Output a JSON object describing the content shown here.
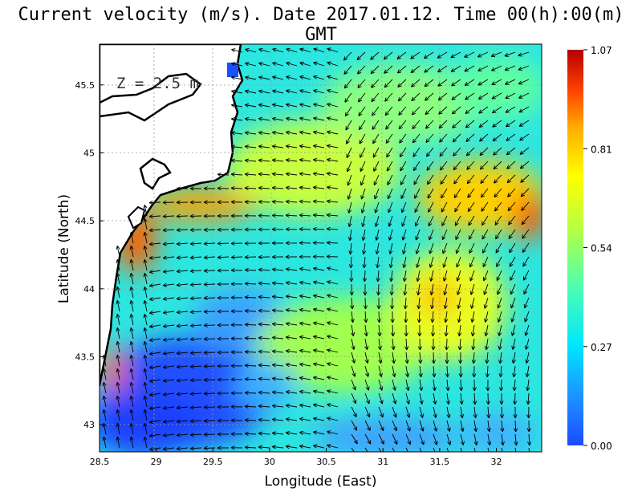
{
  "title": "Current velocity (m/s). Date 2017.01.12. Time 00(h):00(m) GMT",
  "depth_label": "Z = 2.5 m",
  "xlabel": "Longitude (East)",
  "ylabel": "Latitude (North)",
  "x_ticks": [
    {
      "label": "28.5",
      "value": 28.5
    },
    {
      "label": "29",
      "value": 29
    },
    {
      "label": "29.5",
      "value": 29.5
    },
    {
      "label": "30",
      "value": 30
    },
    {
      "label": "30.5",
      "value": 30.5
    },
    {
      "label": "31",
      "value": 31
    },
    {
      "label": "31.5",
      "value": 31.5
    },
    {
      "label": "32",
      "value": 32
    }
  ],
  "y_ticks": [
    {
      "label": "43",
      "value": 43
    },
    {
      "label": "43.5",
      "value": 43.5
    },
    {
      "label": "44",
      "value": 44
    },
    {
      "label": "44.5",
      "value": 44.5
    },
    {
      "label": "45",
      "value": 45
    },
    {
      "label": "45.5",
      "value": 45.5
    }
  ],
  "colorbar": {
    "ticks": [
      "1.07",
      "0.81",
      "0.54",
      "0.27",
      "0.00"
    ],
    "min": 0.0,
    "max": 1.07,
    "colors": [
      "#1a4cff",
      "#1e90ff",
      "#00e5ff",
      "#4dffb0",
      "#b8ff40",
      "#ffff00",
      "#ffb000",
      "#ff4000",
      "#b40000"
    ]
  },
  "map": {
    "lon_range": [
      28.5,
      32.4
    ],
    "lat_range": [
      42.8,
      45.8
    ],
    "land_color": "#ffffff",
    "coast_color": "#000000",
    "grid": true
  }
}
